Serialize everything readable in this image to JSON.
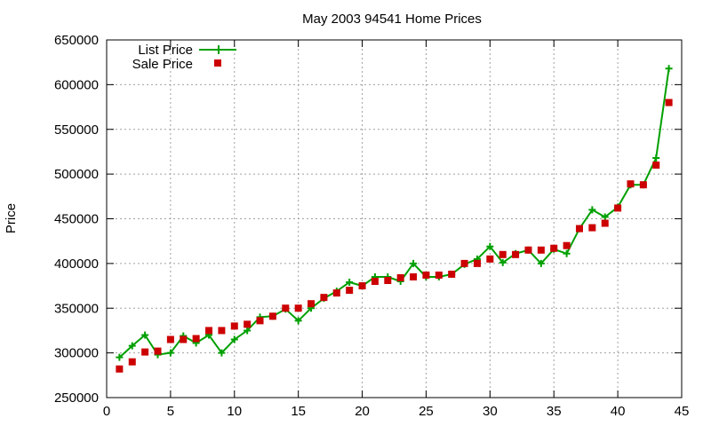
{
  "chart_data": {
    "type": "line",
    "title": "May 2003 94541 Home Prices",
    "ylabel": "Price",
    "xlim": [
      0,
      45
    ],
    "ylim": [
      250000,
      650000
    ],
    "xticks": [
      0,
      5,
      10,
      15,
      20,
      25,
      30,
      35,
      40,
      45
    ],
    "yticks": [
      250000,
      300000,
      350000,
      400000,
      450000,
      500000,
      550000,
      600000,
      650000
    ],
    "grid": true,
    "legend_position": "top-left",
    "series": [
      {
        "name": "List Price",
        "style": "line-plus",
        "color": "#00a000",
        "x": [
          1,
          2,
          3,
          4,
          5,
          6,
          7,
          8,
          9,
          10,
          11,
          12,
          13,
          14,
          15,
          16,
          17,
          18,
          19,
          20,
          21,
          22,
          23,
          24,
          25,
          26,
          27,
          28,
          29,
          30,
          31,
          32,
          33,
          34,
          35,
          36,
          37,
          38,
          39,
          40,
          41,
          42,
          43,
          44
        ],
        "y": [
          295000,
          308000,
          320000,
          298000,
          300000,
          319000,
          311000,
          320000,
          300000,
          315000,
          325000,
          340000,
          341000,
          349000,
          336000,
          350000,
          361000,
          369000,
          379000,
          375000,
          385000,
          385000,
          380000,
          400000,
          385000,
          385000,
          388000,
          399000,
          405000,
          419000,
          401000,
          411000,
          415000,
          400000,
          416000,
          411000,
          439000,
          460000,
          452000,
          463000,
          488000,
          488000,
          518000,
          618000
        ]
      },
      {
        "name": "Sale Price",
        "style": "square",
        "color": "#cc0000",
        "x": [
          1,
          2,
          3,
          4,
          5,
          6,
          7,
          8,
          9,
          10,
          11,
          12,
          13,
          14,
          15,
          16,
          17,
          18,
          19,
          20,
          21,
          22,
          23,
          24,
          25,
          26,
          27,
          28,
          29,
          30,
          31,
          32,
          33,
          34,
          35,
          36,
          37,
          38,
          39,
          40,
          41,
          42,
          43,
          44
        ],
        "y": [
          282000,
          290000,
          301000,
          302000,
          315000,
          315000,
          316000,
          325000,
          325000,
          330000,
          332000,
          336000,
          341000,
          350000,
          350000,
          355000,
          362000,
          367000,
          370000,
          375000,
          380000,
          381000,
          384000,
          385000,
          387000,
          387000,
          388000,
          400000,
          400000,
          405000,
          410000,
          410000,
          415000,
          415000,
          417000,
          420000,
          439000,
          440000,
          445000,
          462000,
          489000,
          488000,
          510000,
          580000
        ]
      }
    ]
  }
}
